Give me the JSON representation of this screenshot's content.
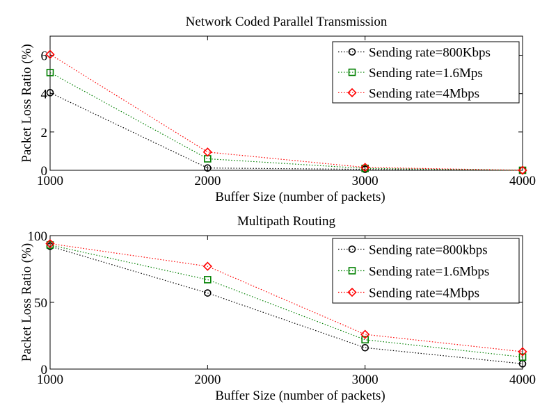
{
  "chart_data": [
    {
      "type": "line",
      "title": "Network Coded Parallel Transmission",
      "xlabel": "Buffer Size (number of packets)",
      "ylabel": "Packet Loss Ratio (%)",
      "x": [
        1000,
        2000,
        3000,
        4000
      ],
      "xticks": [
        "1000",
        "2000",
        "3000",
        "4000"
      ],
      "yticks": [
        0,
        2,
        4,
        6
      ],
      "ytick_labels": [
        "0",
        "2",
        "4",
        "6"
      ],
      "xlim": [
        1000,
        4000
      ],
      "ylim": [
        0,
        7
      ],
      "grid": false,
      "legend_position": "top-right",
      "series": [
        {
          "name": "Sending rate=800Kbps",
          "values": [
            4.05,
            0.12,
            0.05,
            0.0
          ],
          "color": "#000000",
          "marker": "circle"
        },
        {
          "name": "Sending rate=1.6Mps",
          "values": [
            5.1,
            0.6,
            0.1,
            0.0
          ],
          "color": "#008000",
          "marker": "square"
        },
        {
          "name": "Sending rate=4Mbps",
          "values": [
            6.05,
            0.95,
            0.15,
            0.0
          ],
          "color": "#ff0000",
          "marker": "diamond"
        }
      ]
    },
    {
      "type": "line",
      "title": "Multipath Routing",
      "xlabel": "Buffer Size (number of packets)",
      "ylabel": "Packet Loss Ratio (%)",
      "x": [
        1000,
        2000,
        3000,
        4000
      ],
      "xticks": [
        "1000",
        "2000",
        "3000",
        "4000"
      ],
      "yticks": [
        0,
        50,
        100
      ],
      "ytick_labels": [
        "0",
        "50",
        "100"
      ],
      "xlim": [
        1000,
        4000
      ],
      "ylim": [
        0,
        100
      ],
      "grid": false,
      "legend_position": "top-right",
      "series": [
        {
          "name": "Sending rate=800kbps",
          "values": [
            92,
            57,
            16,
            4
          ],
          "color": "#000000",
          "marker": "circle"
        },
        {
          "name": "Sending rate=1.6Mbps",
          "values": [
            93,
            67,
            22,
            9
          ],
          "color": "#008000",
          "marker": "square"
        },
        {
          "name": "Sending rate=4Mbps",
          "values": [
            94,
            77,
            26,
            13
          ],
          "color": "#ff0000",
          "marker": "diamond"
        }
      ]
    }
  ]
}
